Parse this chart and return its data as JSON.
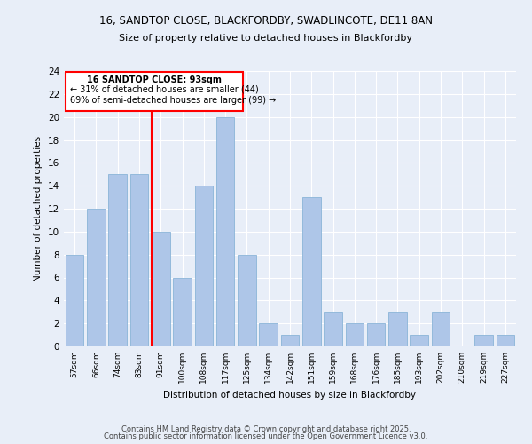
{
  "title1": "16, SANDTOP CLOSE, BLACKFORDBY, SWADLINCOTE, DE11 8AN",
  "title2": "Size of property relative to detached houses in Blackfordby",
  "xlabel": "Distribution of detached houses by size in Blackfordby",
  "ylabel": "Number of detached properties",
  "categories": [
    "57sqm",
    "66sqm",
    "74sqm",
    "83sqm",
    "91sqm",
    "100sqm",
    "108sqm",
    "117sqm",
    "125sqm",
    "134sqm",
    "142sqm",
    "151sqm",
    "159sqm",
    "168sqm",
    "176sqm",
    "185sqm",
    "193sqm",
    "202sqm",
    "210sqm",
    "219sqm",
    "227sqm"
  ],
  "values": [
    8,
    12,
    15,
    15,
    10,
    6,
    14,
    20,
    8,
    2,
    1,
    13,
    3,
    2,
    2,
    3,
    1,
    3,
    0,
    1,
    1
  ],
  "bar_color": "#aec6e8",
  "bar_edge_color": "#8ab4d8",
  "ylim": [
    0,
    24
  ],
  "yticks": [
    0,
    2,
    4,
    6,
    8,
    10,
    12,
    14,
    16,
    18,
    20,
    22,
    24
  ],
  "bg_color": "#e8eef8",
  "grid_color": "#ffffff",
  "annotation_title": "16 SANDTOP CLOSE: 93sqm",
  "annotation_line1": "← 31% of detached houses are smaller (44)",
  "annotation_line2": "69% of semi-detached houses are larger (99) →",
  "red_line_index": 3.57,
  "footer1": "Contains HM Land Registry data © Crown copyright and database right 2025.",
  "footer2": "Contains public sector information licensed under the Open Government Licence v3.0."
}
